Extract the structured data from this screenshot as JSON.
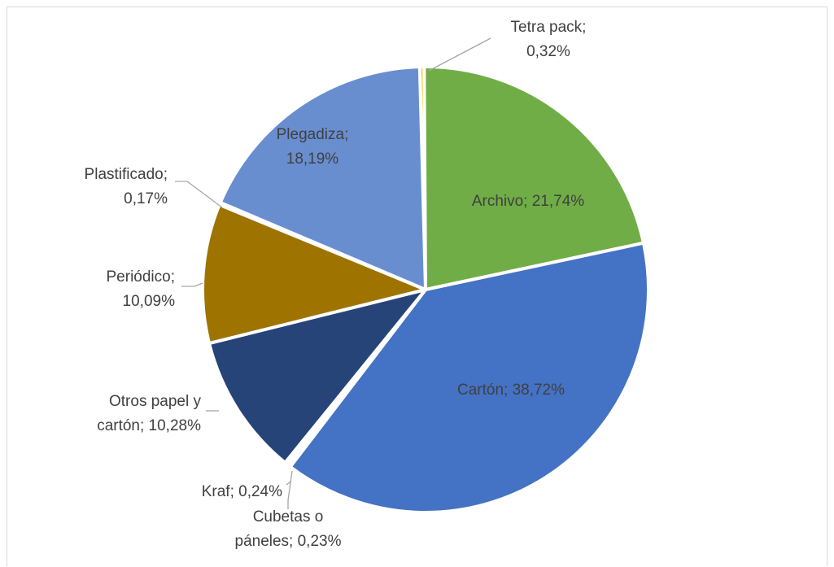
{
  "chart_data": {
    "type": "pie",
    "slices": [
      {
        "name": "Tetra pack",
        "value": 0.32,
        "label_lines": [
          "Tetra pack;",
          "0,32%"
        ],
        "color": "#ffc000",
        "label_color": "#404040"
      },
      {
        "name": "Archivo",
        "value": 21.74,
        "label_lines": [
          "Archivo; 21,74%"
        ],
        "color": "#70ad47",
        "label_color": "#404040"
      },
      {
        "name": "Cartón",
        "value": 38.72,
        "label_lines": [
          "Cartón; 38,72%"
        ],
        "color": "#4472c4",
        "label_color": "#404040"
      },
      {
        "name": "Cubetas o páneles",
        "value": 0.23,
        "label_lines": [
          "Cubetas o",
          "páneles; 0,23%"
        ],
        "color": "#ed7d31",
        "label_color": "#404040"
      },
      {
        "name": "Kraf",
        "value": 0.24,
        "label_lines": [
          "Kraf; 0,24%"
        ],
        "color": "#a5a5a5",
        "label_color": "#404040"
      },
      {
        "name": "Otros papel y cartón",
        "value": 10.28,
        "label_lines": [
          "Otros papel y",
          "cartón; 10,28%"
        ],
        "color": "#264478",
        "label_color": "#404040"
      },
      {
        "name": "Periódico",
        "value": 10.09,
        "label_lines": [
          "Periódico;",
          "10,09%"
        ],
        "color": "#9e7300",
        "label_color": "#404040"
      },
      {
        "name": "Plastificado",
        "value": 0.17,
        "label_lines": [
          "Plastificado;",
          "0,17%"
        ],
        "color": "#a5a5a5",
        "label_color": "#404040"
      },
      {
        "name": "Plegadiza",
        "value": 18.19,
        "label_lines": [
          "Plegadiza;",
          "18,19%"
        ],
        "color": "#698ed0",
        "label_color": "#404040"
      }
    ],
    "title": "",
    "legend": "none",
    "start_angle_deg": -1.5
  }
}
